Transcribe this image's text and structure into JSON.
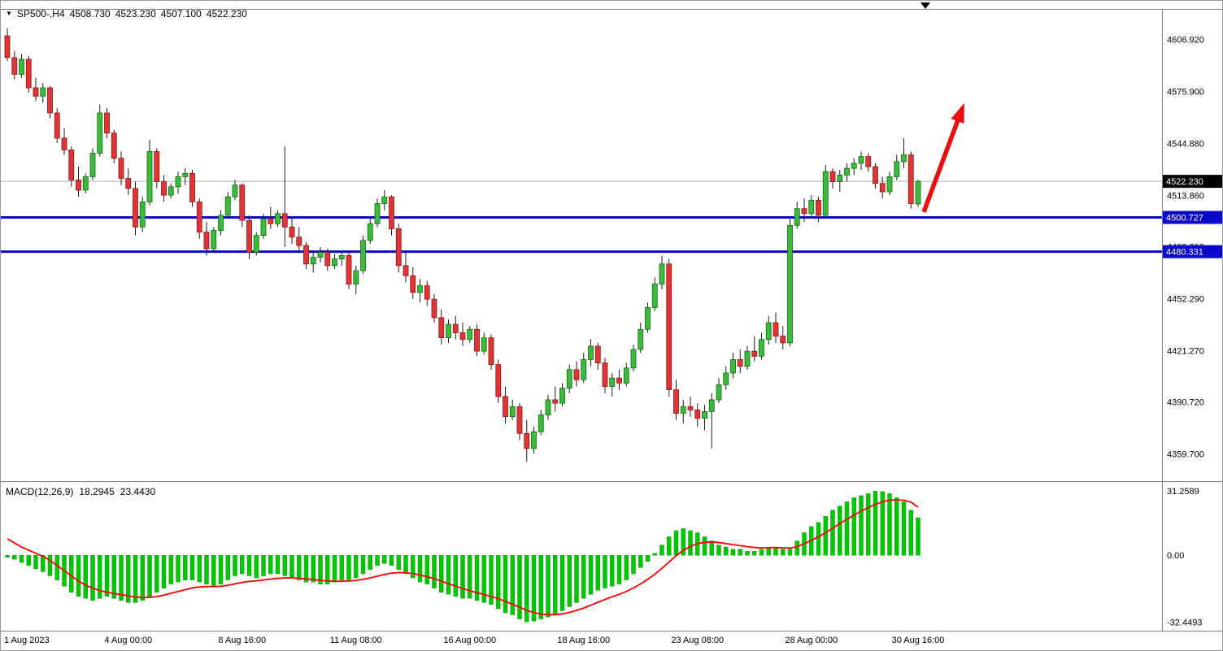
{
  "window": {
    "symbol_period": "SP500-,H4",
    "ohlc": {
      "open": "4508.730",
      "high": "4523.230",
      "low": "4507.100",
      "close": "4522.230"
    }
  },
  "chart_data": [
    {
      "type": "candlestick",
      "title": "SP500-,H4",
      "timeframe": "H4",
      "ylim": [
        4345,
        4625
      ],
      "y_ticks": [
        "4606.920",
        "4575.900",
        "4544.880",
        "4513.860",
        "4483.310",
        "4452.290",
        "4421.270",
        "4390.720",
        "4359.700"
      ],
      "current_price": "4522.230",
      "support_lines": [
        "4500.727",
        "4480.331"
      ],
      "x_ticks": [
        {
          "i": 0,
          "label": "1 Aug 2023"
        },
        {
          "i": 17,
          "label": "4 Aug 00:00"
        },
        {
          "i": 33,
          "label": "8 Aug 16:00"
        },
        {
          "i": 49,
          "label": "11 Aug 08:00"
        },
        {
          "i": 65,
          "label": "16 Aug 00:00"
        },
        {
          "i": 81,
          "label": "18 Aug 16:00"
        },
        {
          "i": 97,
          "label": "23 Aug 08:00"
        },
        {
          "i": 113,
          "label": "28 Aug 00:00"
        },
        {
          "i": 128,
          "label": "30 Aug 16:00"
        }
      ],
      "arrow": {
        "from": {
          "index": 128.8,
          "price": 4504
        },
        "to": {
          "index": 134.5,
          "price": 4569
        }
      },
      "colors": {
        "up_fill": "#3cba3c",
        "up_stroke": "#0f6b0f",
        "down_fill": "#e03535",
        "down_stroke": "#8c1616",
        "wick": "#1a1a1a",
        "support": "#0a0ac8",
        "current_badge_bg": "#000000",
        "support_badge_bg": "#0a0ac8",
        "badge_text": "#ffffff",
        "arrow": "#ea0e0e",
        "current_line": "#b4b4b4"
      },
      "candles": [
        [
          4609,
          4613.5,
          4594,
          4596
        ],
        [
          4596,
          4600,
          4583,
          4586
        ],
        [
          4586,
          4598,
          4584,
          4595
        ],
        [
          4595,
          4597,
          4575,
          4578
        ],
        [
          4578,
          4584,
          4570,
          4573
        ],
        [
          4573,
          4581,
          4569,
          4578
        ],
        [
          4578,
          4579,
          4560,
          4563
        ],
        [
          4563,
          4566,
          4545,
          4548
        ],
        [
          4548,
          4554,
          4538,
          4541
        ],
        [
          4541,
          4543,
          4519,
          4523
        ],
        [
          4523,
          4531,
          4513,
          4517
        ],
        [
          4517,
          4527,
          4515,
          4525
        ],
        [
          4525,
          4542,
          4523,
          4539
        ],
        [
          4539,
          4568,
          4537,
          4563
        ],
        [
          4563,
          4566,
          4548,
          4551
        ],
        [
          4551,
          4553,
          4533,
          4536
        ],
        [
          4536,
          4540,
          4520,
          4524
        ],
        [
          4524,
          4530,
          4514,
          4518
        ],
        [
          4518,
          4522,
          4490,
          4495
        ],
        [
          4495,
          4513,
          4492,
          4510
        ],
        [
          4510,
          4547,
          4508,
          4540
        ],
        [
          4540,
          4542,
          4518,
          4522
        ],
        [
          4522,
          4526,
          4510,
          4514
        ],
        [
          4514,
          4521,
          4512,
          4519
        ],
        [
          4519,
          4528,
          4515,
          4525
        ],
        [
          4525,
          4530,
          4520,
          4527
        ],
        [
          4527,
          4529,
          4507,
          4510
        ],
        [
          4510,
          4512,
          4488,
          4492
        ],
        [
          4492,
          4498,
          4478,
          4482
        ],
        [
          4482,
          4495,
          4480,
          4493
        ],
        [
          4493,
          4505,
          4490,
          4502
        ],
        [
          4502,
          4516,
          4500,
          4513
        ],
        [
          4513,
          4523,
          4511,
          4520
        ],
        [
          4520,
          4521,
          4495,
          4499
        ],
        [
          4499,
          4502,
          4476,
          4480
        ],
        [
          4480,
          4492,
          4478,
          4490
        ],
        [
          4490,
          4503,
          4488,
          4500
        ],
        [
          4500,
          4507,
          4494,
          4497
        ],
        [
          4497,
          4505,
          4495,
          4503
        ],
        [
          4503,
          4543,
          4483,
          4495
        ],
        [
          4495,
          4500,
          4485,
          4489
        ],
        [
          4489,
          4495,
          4480,
          4484
        ],
        [
          4484,
          4486,
          4470,
          4473
        ],
        [
          4473,
          4480,
          4468,
          4477
        ],
        [
          4477,
          4483,
          4474,
          4480
        ],
        [
          4480,
          4482,
          4469,
          4472
        ],
        [
          4472,
          4479,
          4470,
          4476
        ],
        [
          4476,
          4481,
          4472,
          4478
        ],
        [
          4478,
          4480,
          4458,
          4461
        ],
        [
          4461,
          4472,
          4455,
          4469
        ],
        [
          4469,
          4490,
          4467,
          4487
        ],
        [
          4487,
          4500,
          4485,
          4497
        ],
        [
          4497,
          4512,
          4495,
          4509
        ],
        [
          4509,
          4517,
          4505,
          4513
        ],
        [
          4513,
          4514,
          4490,
          4494
        ],
        [
          4494,
          4497,
          4468,
          4472
        ],
        [
          4472,
          4480,
          4462,
          4466
        ],
        [
          4466,
          4471,
          4452,
          4456
        ],
        [
          4456,
          4464,
          4450,
          4460
        ],
        [
          4460,
          4463,
          4448,
          4452
        ],
        [
          4452,
          4455,
          4438,
          4441
        ],
        [
          4441,
          4446,
          4425,
          4429
        ],
        [
          4429,
          4440,
          4426,
          4437
        ],
        [
          4437,
          4442,
          4428,
          4432
        ],
        [
          4432,
          4438,
          4424,
          4428
        ],
        [
          4428,
          4436,
          4426,
          4434
        ],
        [
          4434,
          4437,
          4418,
          4421
        ],
        [
          4421,
          4432,
          4419,
          4429
        ],
        [
          4429,
          4431,
          4410,
          4413
        ],
        [
          4413,
          4416,
          4390,
          4394
        ],
        [
          4394,
          4400,
          4378,
          4382
        ],
        [
          4382,
          4392,
          4380,
          4388
        ],
        [
          4388,
          4390,
          4368,
          4372
        ],
        [
          4372,
          4380,
          4355,
          4363
        ],
        [
          4363,
          4376,
          4360,
          4373
        ],
        [
          4373,
          4386,
          4371,
          4383
        ],
        [
          4383,
          4395,
          4380,
          4392
        ],
        [
          4392,
          4400,
          4385,
          4390
        ],
        [
          4390,
          4402,
          4388,
          4399
        ],
        [
          4399,
          4413,
          4396,
          4410
        ],
        [
          4410,
          4415,
          4400,
          4404
        ],
        [
          4404,
          4420,
          4402,
          4416
        ],
        [
          4416,
          4428,
          4412,
          4424
        ],
        [
          4424,
          4426,
          4410,
          4414
        ],
        [
          4414,
          4417,
          4396,
          4400
        ],
        [
          4400,
          4408,
          4394,
          4405
        ],
        [
          4405,
          4410,
          4398,
          4402
        ],
        [
          4402,
          4414,
          4400,
          4411
        ],
        [
          4411,
          4425,
          4409,
          4422
        ],
        [
          4422,
          4438,
          4420,
          4434
        ],
        [
          4434,
          4450,
          4432,
          4447
        ],
        [
          4447,
          4465,
          4445,
          4461
        ],
        [
          4461,
          4478,
          4458,
          4473
        ],
        [
          4473,
          4476,
          4394,
          4398
        ],
        [
          4398,
          4404,
          4380,
          4384
        ],
        [
          4384,
          4392,
          4378,
          4388
        ],
        [
          4388,
          4394,
          4382,
          4386
        ],
        [
          4386,
          4390,
          4376,
          4381
        ],
        [
          4381,
          4389,
          4374,
          4385
        ],
        [
          4385,
          4396,
          4363,
          4392
        ],
        [
          4392,
          4405,
          4390,
          4401
        ],
        [
          4401,
          4412,
          4398,
          4408
        ],
        [
          4408,
          4420,
          4405,
          4416
        ],
        [
          4416,
          4422,
          4408,
          4412
        ],
        [
          4412,
          4424,
          4410,
          4421
        ],
        [
          4421,
          4430,
          4415,
          4418
        ],
        [
          4418,
          4432,
          4416,
          4428
        ],
        [
          4428,
          4442,
          4425,
          4438
        ],
        [
          4438,
          4444,
          4426,
          4430
        ],
        [
          4430,
          4436,
          4422,
          4426
        ],
        [
          4426,
          4500,
          4424,
          4496
        ],
        [
          4496,
          4510,
          4494,
          4506
        ],
        [
          4506,
          4512,
          4498,
          4503
        ],
        [
          4503,
          4514,
          4500,
          4511
        ],
        [
          4511,
          4513,
          4498,
          4502
        ],
        [
          4502,
          4532,
          4500,
          4528
        ],
        [
          4528,
          4530,
          4518,
          4522
        ],
        [
          4522,
          4529,
          4516,
          4526
        ],
        [
          4526,
          4533,
          4522,
          4530
        ],
        [
          4530,
          4536,
          4526,
          4533
        ],
        [
          4533,
          4540,
          4529,
          4537
        ],
        [
          4537,
          4539,
          4528,
          4531
        ],
        [
          4531,
          4533,
          4518,
          4521
        ],
        [
          4521,
          4525,
          4512,
          4516
        ],
        [
          4516,
          4528,
          4514,
          4525
        ],
        [
          4525,
          4538,
          4523,
          4534
        ],
        [
          4534,
          4548,
          4530,
          4538
        ],
        [
          4538,
          4540,
          4506,
          4509
        ],
        [
          4508.73,
          4523.23,
          4507.1,
          4522.23
        ]
      ]
    },
    {
      "type": "macd",
      "label": "MACD(12,26,9)",
      "macd_value": "18.2945",
      "signal_value": "23.4430",
      "y_ticks": [
        "31.2589",
        "0.00",
        "-32.4493"
      ],
      "ylim": [
        -35.5,
        34.5
      ],
      "colors": {
        "histogram": "#00c800",
        "histogram_stroke": "#009000",
        "signal": "#ff0000"
      },
      "histogram": [
        -1,
        -2,
        -3.5,
        -5,
        -6.5,
        -8,
        -10,
        -12,
        -15,
        -18,
        -20,
        -21,
        -22,
        -21,
        -20,
        -21,
        -22,
        -23,
        -23,
        -22,
        -20,
        -18,
        -16,
        -14,
        -13,
        -12,
        -12,
        -13,
        -14,
        -15,
        -14,
        -12,
        -10,
        -9,
        -10,
        -11,
        -10,
        -9,
        -9,
        -10,
        -11,
        -12,
        -13,
        -13,
        -14,
        -14,
        -13,
        -12,
        -12,
        -11,
        -9,
        -7,
        -5,
        -4,
        -5,
        -7,
        -9,
        -11,
        -13,
        -14,
        -16,
        -18,
        -19,
        -20,
        -21,
        -21,
        -22,
        -23,
        -24,
        -26,
        -28,
        -29,
        -31,
        -32.45,
        -32,
        -31,
        -30,
        -29,
        -27,
        -25,
        -23,
        -21,
        -19,
        -17,
        -16,
        -15,
        -14,
        -12,
        -9,
        -6,
        -3,
        1,
        5,
        9,
        12,
        13,
        12,
        11,
        9,
        7,
        5,
        4,
        3,
        3,
        2,
        2,
        3,
        4,
        4,
        3,
        3,
        7,
        11,
        14,
        16,
        19,
        22,
        24,
        26,
        28,
        29,
        30,
        31.26,
        31,
        30,
        28,
        26,
        22,
        18.2945
      ],
      "signal": [
        8,
        6,
        4,
        2.5,
        1,
        -0.5,
        -2.5,
        -5,
        -7.5,
        -10,
        -12.5,
        -14.5,
        -16,
        -17.2,
        -18,
        -18.6,
        -19.2,
        -19.7,
        -20.4,
        -20.6,
        -20.5,
        -20.1,
        -19.4,
        -18.5,
        -17.6,
        -16.7,
        -15.9,
        -15.4,
        -15.2,
        -15.2,
        -15.1,
        -14.6,
        -13.9,
        -13.2,
        -12.7,
        -12.4,
        -12,
        -11.6,
        -11.2,
        -11,
        -11,
        -11.2,
        -11.5,
        -11.8,
        -12.2,
        -12.5,
        -12.7,
        -12.6,
        -12.5,
        -12.2,
        -11.7,
        -11,
        -10.2,
        -9.3,
        -8.7,
        -8.4,
        -8.5,
        -8.9,
        -9.6,
        -10.4,
        -11.4,
        -12.6,
        -13.8,
        -15,
        -16.2,
        -17.2,
        -18.2,
        -19.1,
        -20,
        -21.1,
        -22.5,
        -23.8,
        -25.3,
        -26.8,
        -27.9,
        -28.6,
        -28.9,
        -28.9,
        -28.5,
        -27.8,
        -26.8,
        -25.7,
        -24.3,
        -22.9,
        -21.5,
        -20.2,
        -19,
        -17.6,
        -15.9,
        -13.9,
        -11.7,
        -9.2,
        -6.3,
        -3.3,
        -0.2,
        2.4,
        4.3,
        5.7,
        6.3,
        6.5,
        6.2,
        5.7,
        5.2,
        4.7,
        4.2,
        3.8,
        3.6,
        3.7,
        3.8,
        3.6,
        3.5,
        4.2,
        5.6,
        7.3,
        9,
        11,
        13.2,
        15.4,
        17.5,
        19.6,
        21.5,
        23.2,
        24.8,
        26,
        26.8,
        27,
        26.8,
        25.9,
        23.443
      ]
    }
  ]
}
